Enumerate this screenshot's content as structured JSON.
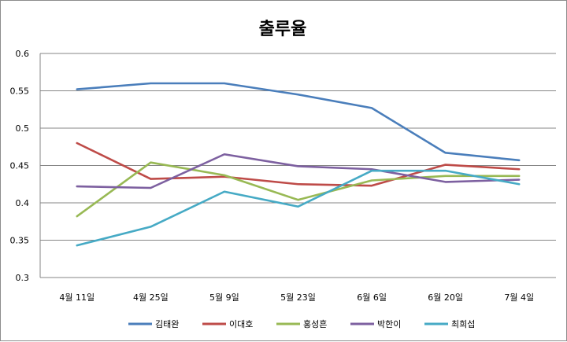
{
  "chart_data": {
    "type": "line",
    "title": "출루율",
    "xlabel": "",
    "ylabel": "",
    "categories": [
      "4월 11일",
      "4월 25일",
      "5월 9일",
      "5월 23일",
      "6월 6일",
      "6월 20일",
      "7월 4일"
    ],
    "ylim": [
      0.3,
      0.6
    ],
    "yticks": [
      "0.3",
      "0.35",
      "0.4",
      "0.45",
      "0.5",
      "0.55",
      "0.6"
    ],
    "grid": true,
    "legend_position": "bottom",
    "series": [
      {
        "name": "김태완",
        "color": "#4a7ebb",
        "values": [
          0.552,
          0.56,
          0.56,
          0.545,
          0.527,
          0.467,
          0.457
        ]
      },
      {
        "name": "이대호",
        "color": "#be4b48",
        "values": [
          0.48,
          0.432,
          0.435,
          0.425,
          0.423,
          0.451,
          0.445
        ]
      },
      {
        "name": "홍성흔",
        "color": "#98b954",
        "values": [
          0.382,
          0.454,
          0.437,
          0.404,
          0.43,
          0.436,
          0.436
        ]
      },
      {
        "name": "박한이",
        "color": "#7d60a0",
        "values": [
          0.422,
          0.42,
          0.465,
          0.449,
          0.445,
          0.428,
          0.431
        ]
      },
      {
        "name": "최희섭",
        "color": "#46aac5",
        "values": [
          0.343,
          0.368,
          0.415,
          0.395,
          0.443,
          0.443,
          0.425
        ]
      }
    ]
  }
}
